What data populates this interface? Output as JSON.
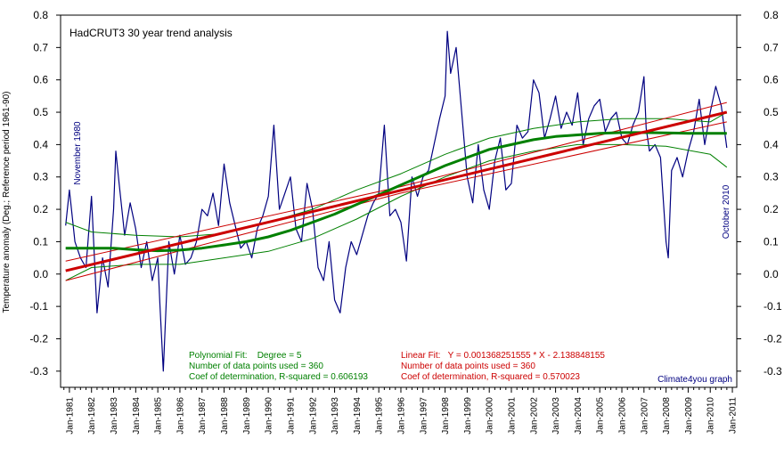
{
  "chart_data": {
    "type": "line",
    "title": "HadCRUT3 30 year trend analysis",
    "ylabel": "Temperature anomaly (Deg.; Reference period 1961-90)",
    "xlabel": "",
    "ylim": [
      -0.35,
      0.8
    ],
    "yticks": [
      "0.8",
      "0.7",
      "0.6",
      "0.5",
      "0.4",
      "0.3",
      "0.2",
      "0.1",
      "0.0",
      "-0.1",
      "-0.2",
      "-0.3"
    ],
    "ytick_values": [
      0.8,
      0.7,
      0.6,
      0.5,
      0.4,
      0.3,
      0.2,
      0.1,
      0.0,
      -0.1,
      -0.2,
      -0.3
    ],
    "xlim": [
      1980.6,
      2011.2
    ],
    "xtick_labels": [
      "Jan-1981",
      "Jan-1982",
      "Jan-1983",
      "Jan-1984",
      "Jan-1985",
      "Jan-1986",
      "Jan-1987",
      "Jan-1988",
      "Jan-1989",
      "Jan-1990",
      "Jan-1991",
      "Jan-1992",
      "Jan-1993",
      "Jan-1994",
      "Jan-1995",
      "Jan-1996",
      "Jan-1997",
      "Jan-1998",
      "Jan-1999",
      "Jan-2000",
      "Jan-2001",
      "Jan-2002",
      "Jan-2003",
      "Jan-2004",
      "Jan-2005",
      "Jan-2006",
      "Jan-2007",
      "Jan-2008",
      "Jan-2009",
      "Jan-2010",
      "Jan-2011"
    ],
    "xtick_values": [
      1981,
      1982,
      1983,
      1984,
      1985,
      1986,
      1987,
      1988,
      1989,
      1990,
      1991,
      1992,
      1993,
      1994,
      1995,
      1996,
      1997,
      1998,
      1999,
      2000,
      2001,
      2002,
      2003,
      2004,
      2005,
      2006,
      2007,
      2008,
      2009,
      2010,
      2011
    ],
    "grid": false,
    "colors": {
      "monthly": "#000080",
      "polynomial": "#008000",
      "linear": "#cc0000",
      "polynomial_text": "#008000",
      "linear_text": "#cc0000",
      "credit_text": "#000080"
    },
    "series": [
      {
        "name": "",
        "kind": "monthly",
        "x": [
          1980.83,
          1981.0,
          1981.25,
          1981.5,
          1981.75,
          1982.0,
          1982.25,
          1982.5,
          1982.75,
          1983.0,
          1983.1,
          1983.25,
          1983.5,
          1983.75,
          1984.0,
          1984.25,
          1984.5,
          1984.75,
          1985.0,
          1985.1,
          1985.25,
          1985.5,
          1985.75,
          1986.0,
          1986.25,
          1986.5,
          1986.75,
          1987.0,
          1987.25,
          1987.5,
          1987.75,
          1988.0,
          1988.25,
          1988.5,
          1988.75,
          1989.0,
          1989.25,
          1989.5,
          1989.75,
          1990.0,
          1990.25,
          1990.5,
          1990.75,
          1991.0,
          1991.25,
          1991.5,
          1991.75,
          1992.0,
          1992.25,
          1992.5,
          1992.75,
          1993.0,
          1993.25,
          1993.5,
          1993.75,
          1994.0,
          1994.25,
          1994.5,
          1994.75,
          1995.0,
          1995.25,
          1995.5,
          1995.75,
          1996.0,
          1996.25,
          1996.5,
          1996.75,
          1997.0,
          1997.25,
          1997.5,
          1997.75,
          1998.0,
          1998.1,
          1998.25,
          1998.5,
          1998.75,
          1999.0,
          1999.25,
          1999.5,
          1999.75,
          2000.0,
          2000.25,
          2000.5,
          2000.75,
          2001.0,
          2001.25,
          2001.5,
          2001.75,
          2002.0,
          2002.25,
          2002.5,
          2002.75,
          2003.0,
          2003.25,
          2003.5,
          2003.75,
          2004.0,
          2004.25,
          2004.5,
          2004.75,
          2005.0,
          2005.25,
          2005.5,
          2005.75,
          2006.0,
          2006.25,
          2006.5,
          2006.75,
          2007.0,
          2007.1,
          2007.25,
          2007.5,
          2007.75,
          2008.0,
          2008.1,
          2008.25,
          2008.5,
          2008.75,
          2009.0,
          2009.25,
          2009.5,
          2009.75,
          2010.0,
          2010.25,
          2010.5,
          2010.75
        ],
        "y": [
          0.15,
          0.26,
          0.1,
          0.05,
          0.02,
          0.24,
          -0.12,
          0.05,
          -0.04,
          0.2,
          0.38,
          0.28,
          0.12,
          0.22,
          0.14,
          0.02,
          0.1,
          -0.02,
          0.05,
          -0.1,
          -0.3,
          0.1,
          0.0,
          0.12,
          0.03,
          0.05,
          0.1,
          0.2,
          0.18,
          0.25,
          0.15,
          0.34,
          0.22,
          0.15,
          0.08,
          0.1,
          0.05,
          0.14,
          0.18,
          0.24,
          0.46,
          0.2,
          0.25,
          0.3,
          0.14,
          0.1,
          0.28,
          0.2,
          0.02,
          -0.02,
          0.1,
          -0.08,
          -0.12,
          0.02,
          0.1,
          0.06,
          0.12,
          0.18,
          0.22,
          0.25,
          0.46,
          0.18,
          0.2,
          0.16,
          0.04,
          0.3,
          0.24,
          0.3,
          0.32,
          0.4,
          0.48,
          0.55,
          0.75,
          0.62,
          0.7,
          0.5,
          0.3,
          0.22,
          0.4,
          0.26,
          0.2,
          0.35,
          0.42,
          0.26,
          0.28,
          0.46,
          0.42,
          0.44,
          0.6,
          0.56,
          0.42,
          0.48,
          0.55,
          0.45,
          0.5,
          0.46,
          0.56,
          0.4,
          0.48,
          0.52,
          0.54,
          0.44,
          0.48,
          0.5,
          0.42,
          0.4,
          0.46,
          0.5,
          0.61,
          0.45,
          0.38,
          0.4,
          0.36,
          0.1,
          0.05,
          0.32,
          0.36,
          0.3,
          0.38,
          0.44,
          0.54,
          0.4,
          0.5,
          0.58,
          0.52,
          0.39
        ]
      },
      {
        "name": "",
        "kind": "polynomial",
        "x": [
          1980.83,
          1982,
          1983,
          1984,
          1985,
          1986,
          1987,
          1988,
          1989,
          1990,
          1991,
          1992,
          1993,
          1994,
          1995,
          1996,
          1997,
          1998,
          1999,
          2000,
          2001,
          2002,
          2003,
          2004,
          2005,
          2006,
          2007,
          2008,
          2009,
          2010,
          2010.75
        ],
        "y": [
          0.08,
          0.08,
          0.08,
          0.075,
          0.072,
          0.074,
          0.08,
          0.09,
          0.1,
          0.115,
          0.135,
          0.16,
          0.185,
          0.215,
          0.245,
          0.275,
          0.305,
          0.335,
          0.36,
          0.385,
          0.4,
          0.415,
          0.425,
          0.43,
          0.435,
          0.437,
          0.437,
          0.436,
          0.435,
          0.435,
          0.435
        ]
      },
      {
        "name": "",
        "kind": "poly-upper",
        "x": [
          1980.83,
          1982,
          1984,
          1986,
          1988,
          1990,
          1992,
          1994,
          1996,
          1998,
          2000,
          2002,
          2004,
          2006,
          2008,
          2010,
          2010.75
        ],
        "y": [
          0.16,
          0.13,
          0.12,
          0.115,
          0.125,
          0.16,
          0.2,
          0.26,
          0.31,
          0.37,
          0.42,
          0.45,
          0.47,
          0.48,
          0.48,
          0.47,
          0.5
        ]
      },
      {
        "name": "",
        "kind": "poly-lower",
        "x": [
          1980.83,
          1982,
          1984,
          1986,
          1988,
          1990,
          1992,
          1994,
          1996,
          1998,
          2000,
          2002,
          2004,
          2006,
          2008,
          2010,
          2010.75
        ],
        "y": [
          -0.02,
          0.02,
          0.03,
          0.03,
          0.05,
          0.07,
          0.11,
          0.17,
          0.24,
          0.3,
          0.35,
          0.38,
          0.4,
          0.4,
          0.395,
          0.37,
          0.33
        ]
      },
      {
        "name": "",
        "kind": "linear",
        "x": [
          1980.83,
          2010.75
        ],
        "y": [
          0.01,
          0.5
        ]
      },
      {
        "name": "",
        "kind": "lin-upper",
        "x": [
          1980.83,
          1996,
          2010.75
        ],
        "y": [
          0.04,
          0.27,
          0.53
        ]
      },
      {
        "name": "",
        "kind": "lin-lower",
        "x": [
          1980.83,
          1996,
          2010.75
        ],
        "y": [
          -0.02,
          0.25,
          0.47
        ]
      }
    ],
    "annotations": {
      "start_label": "November 1980",
      "end_label": "October 2010",
      "poly_fit": "Polynomial Fit:    Degree = 5",
      "poly_points": "Number of data points used = 360",
      "poly_r2": "Coef of determination, R-squared = 0.606193",
      "lin_fit": "Linear Fit:   Y = 0.001368251555 * X - 2.138848155",
      "lin_points": "Number of data points used = 360",
      "lin_r2": "Coef of determination, R-squared = 0.570023",
      "credit": "Climate4you graph"
    }
  }
}
